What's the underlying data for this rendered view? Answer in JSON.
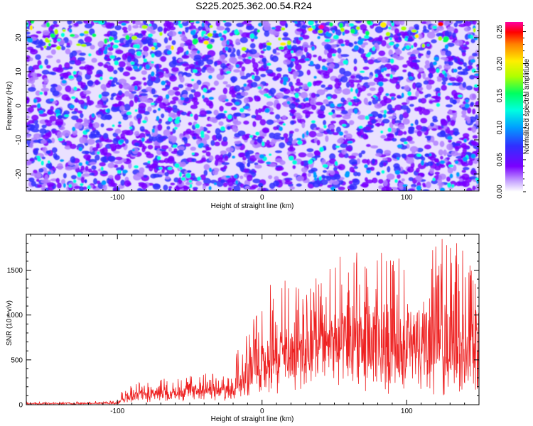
{
  "title": "S225.2025.362.00.54.R24",
  "chart_data": [
    {
      "type": "heatmap",
      "xlabel": "Height of straight line (km)",
      "ylabel": "Frequency (Hz)",
      "xlim": [
        -163,
        150
      ],
      "ylim": [
        -25,
        25
      ],
      "x_ticks": [
        -100,
        0,
        100
      ],
      "y_ticks": [
        -20,
        -10,
        0,
        10,
        20
      ],
      "colorbar": {
        "label": "Normalized spectral amplitude",
        "range": [
          0.0,
          0.265
        ],
        "ticks": [
          "0.00",
          "0.05",
          "0.10",
          "0.15",
          "0.20",
          "0.25"
        ],
        "colors": [
          "#ffffff",
          "#b080ff",
          "#7a00ff",
          "#3030ff",
          "#00a0ff",
          "#00ffe0",
          "#00ff60",
          "#b0ff00",
          "#ffee00",
          "#ff8000",
          "#ff0000",
          "#ff00a0"
        ]
      },
      "description_of_values": "Mostly low amplitudes (0.03-0.08) scattered blobs; higher amplitudes (up to ~0.26) concentrated near top frequencies (>20 Hz)."
    },
    {
      "type": "line",
      "xlabel": "Height of straight line (km)",
      "ylabel": "SNR (10 * v/v)",
      "xlim": [
        -163,
        150
      ],
      "ylim": [
        0,
        1900
      ],
      "x_ticks": [
        -100,
        0,
        100
      ],
      "y_ticks": [
        0,
        500,
        1000,
        1500
      ],
      "series": [
        {
          "name": "SNR",
          "color": "#ff0000",
          "envelope": {
            "x": [
              -163,
              -100,
              -97,
              -80,
              -60,
              -40,
              -20,
              -17,
              -5,
              5,
              15,
              30,
              35,
              60,
              100,
              130,
              150
            ],
            "baseline": [
              10,
              15,
              60,
              120,
              160,
              170,
              200,
              250,
              350,
              500,
              550,
              650,
              700,
              600,
              500,
              500,
              450
            ],
            "peak": [
              30,
              45,
              150,
              310,
              280,
              370,
              310,
              700,
              1000,
              1380,
              1400,
              1250,
              1400,
              1750,
              1650,
              1900,
              1500
            ]
          }
        }
      ]
    }
  ]
}
